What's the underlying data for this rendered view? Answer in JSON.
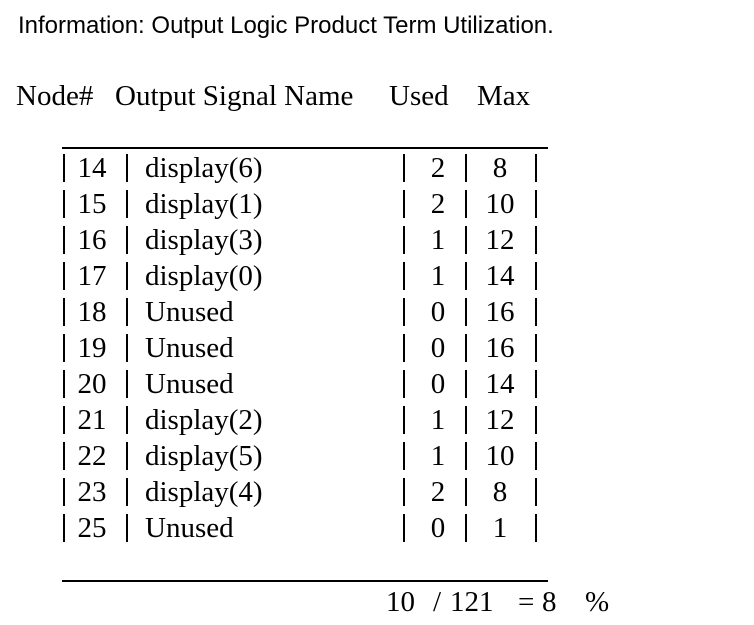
{
  "title": "Information: Output Logic Product Term Utilization.",
  "headers": {
    "node": "Node#",
    "signal": "Output Signal Name",
    "used": "Used",
    "max": "Max"
  },
  "rows": [
    {
      "node": "14",
      "signal": "display(6)",
      "used": "2",
      "max": "8"
    },
    {
      "node": "15",
      "signal": "display(1)",
      "used": "2",
      "max": "10"
    },
    {
      "node": "16",
      "signal": "display(3)",
      "used": "1",
      "max": "12"
    },
    {
      "node": "17",
      "signal": "display(0)",
      "used": "1",
      "max": "14"
    },
    {
      "node": "18",
      "signal": "Unused",
      "used": "0",
      "max": "16"
    },
    {
      "node": "19",
      "signal": "Unused",
      "used": "0",
      "max": "16"
    },
    {
      "node": "20",
      "signal": "Unused",
      "used": "0",
      "max": "14"
    },
    {
      "node": "21",
      "signal": "display(2)",
      "used": "1",
      "max": "12"
    },
    {
      "node": "22",
      "signal": "display(5)",
      "used": "1",
      "max": "10"
    },
    {
      "node": "23",
      "signal": "display(4)",
      "used": "2",
      "max": "8"
    },
    {
      "node": "25",
      "signal": "Unused",
      "used": "0",
      "max": "1"
    }
  ],
  "total": {
    "used": "10",
    "slash": "/",
    "max": "121",
    "equals": "=",
    "percent_value": "8",
    "percent_sign": "%"
  }
}
